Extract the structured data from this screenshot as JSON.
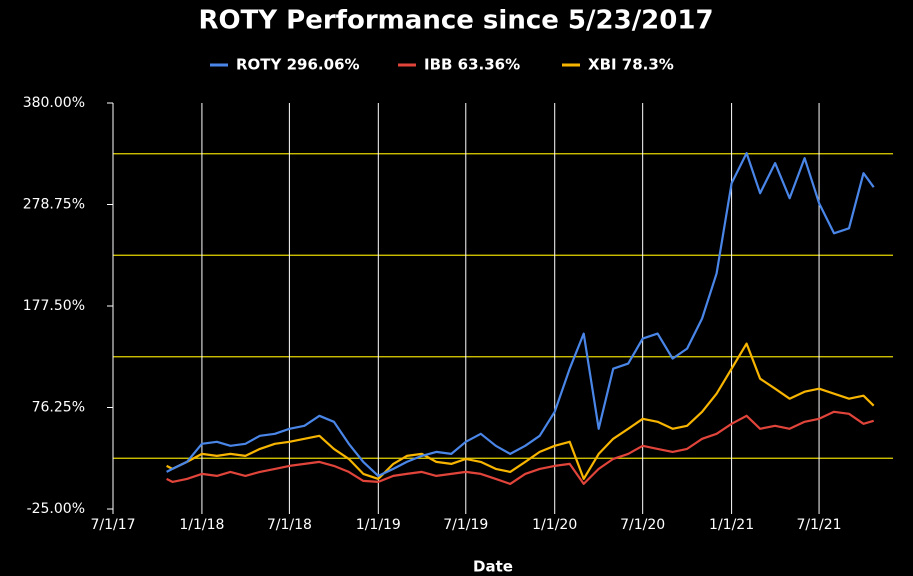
{
  "chart_data": {
    "type": "line",
    "title": "ROTY Performance since 5/23/2017",
    "x_label": "Date",
    "x": [
      "2017-10-20",
      "2017-11-01",
      "2017-12-01",
      "2018-01-01",
      "2018-02-01",
      "2018-03-01",
      "2018-04-01",
      "2018-05-01",
      "2018-06-01",
      "2018-07-01",
      "2018-08-01",
      "2018-09-01",
      "2018-10-01",
      "2018-11-01",
      "2018-12-01",
      "2019-01-01",
      "2019-02-01",
      "2019-03-01",
      "2019-04-01",
      "2019-05-01",
      "2019-06-01",
      "2019-07-01",
      "2019-08-01",
      "2019-09-01",
      "2019-10-01",
      "2019-11-01",
      "2019-12-01",
      "2020-01-01",
      "2020-02-01",
      "2020-03-01",
      "2020-04-01",
      "2020-05-01",
      "2020-06-01",
      "2020-07-01",
      "2020-08-01",
      "2020-09-01",
      "2020-10-01",
      "2020-11-01",
      "2020-12-01",
      "2021-01-01",
      "2021-02-01",
      "2021-03-01",
      "2021-04-01",
      "2021-05-01",
      "2021-06-01",
      "2021-07-01",
      "2021-08-01",
      "2021-09-01",
      "2021-10-01",
      "2021-10-22"
    ],
    "series": [
      {
        "name": "ROTY 296.06%",
        "color": "#4a86e8",
        "values": [
          12,
          15,
          22,
          40,
          42,
          38,
          40,
          48,
          50,
          55,
          58,
          68,
          62,
          40,
          22,
          8,
          15,
          22,
          28,
          32,
          30,
          42,
          50,
          38,
          30,
          38,
          48,
          72,
          115,
          150,
          55,
          115,
          120,
          145,
          150,
          125,
          135,
          165,
          210,
          300,
          330,
          290,
          320,
          285,
          325,
          280,
          250,
          255,
          310,
          296
        ]
      },
      {
        "name": "IBB 63.36%",
        "color": "#e0443a",
        "values": [
          5,
          2,
          5,
          10,
          8,
          12,
          8,
          12,
          15,
          18,
          20,
          22,
          18,
          12,
          3,
          2,
          8,
          10,
          12,
          8,
          10,
          12,
          10,
          5,
          0,
          10,
          15,
          18,
          20,
          0,
          15,
          25,
          30,
          38,
          35,
          32,
          35,
          45,
          50,
          60,
          68,
          55,
          58,
          55,
          62,
          65,
          72,
          70,
          60,
          63
        ]
      },
      {
        "name": "XBI 78.3%",
        "color": "#f7b500",
        "values": [
          18,
          15,
          22,
          30,
          28,
          30,
          28,
          35,
          40,
          42,
          45,
          48,
          35,
          25,
          10,
          5,
          20,
          28,
          30,
          22,
          20,
          25,
          22,
          15,
          12,
          22,
          32,
          38,
          42,
          5,
          30,
          45,
          55,
          65,
          62,
          55,
          58,
          72,
          90,
          115,
          140,
          105,
          95,
          85,
          92,
          95,
          90,
          85,
          88,
          78
        ]
      }
    ],
    "xlim": [
      "2017-07-01",
      "2021-12-01"
    ],
    "xticks": [
      {
        "value": "2017-07-01",
        "label": "7/1/17"
      },
      {
        "value": "2018-01-01",
        "label": "1/1/18"
      },
      {
        "value": "2018-07-01",
        "label": "7/1/18"
      },
      {
        "value": "2019-01-01",
        "label": "1/1/19"
      },
      {
        "value": "2019-07-01",
        "label": "7/1/19"
      },
      {
        "value": "2020-01-01",
        "label": "1/1/20"
      },
      {
        "value": "2020-07-01",
        "label": "7/1/20"
      },
      {
        "value": "2021-01-01",
        "label": "1/1/21"
      },
      {
        "value": "2021-07-01",
        "label": "7/1/21"
      }
    ],
    "ylim": [
      -25,
      380
    ],
    "yticks": [
      {
        "value": -25,
        "label": "-25.00%"
      },
      {
        "value": 76.25,
        "label": "76.25%"
      },
      {
        "value": 177.5,
        "label": "177.50%"
      },
      {
        "value": 278.75,
        "label": "278.75%"
      },
      {
        "value": 380,
        "label": "380.00%"
      }
    ],
    "ygrid": [
      25.625,
      126.875,
      228.125,
      329.375
    ],
    "grid_color": "#e6d700",
    "legend": "top"
  }
}
